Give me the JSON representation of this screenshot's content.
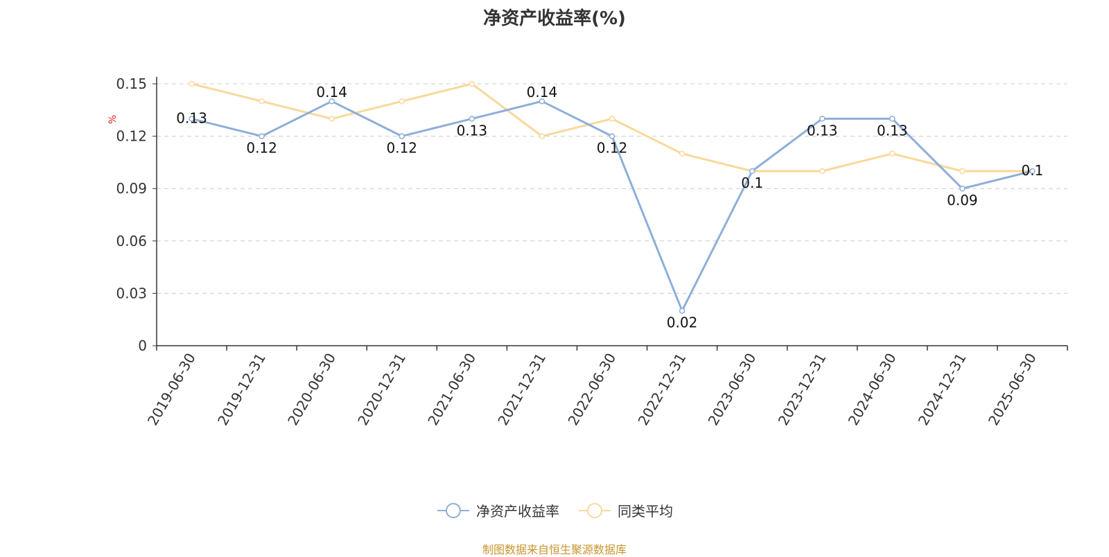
{
  "chart_data": {
    "type": "line",
    "title": "净资产收益率(%)",
    "ylabel": "%",
    "ylim": [
      0,
      0.15
    ],
    "yticks": [
      "0",
      "0.03",
      "0.06",
      "0.09",
      "0.12",
      "0.15"
    ],
    "grid": true,
    "categories": [
      "2019-06-30",
      "2019-12-31",
      "2020-06-30",
      "2020-12-31",
      "2021-06-30",
      "2021-12-31",
      "2022-06-30",
      "2022-12-31",
      "2023-06-30",
      "2023-12-31",
      "2024-06-30",
      "2024-12-31",
      "2025-06-30"
    ],
    "series": [
      {
        "name": "净资产收益率",
        "color": "#8eaed9",
        "values": [
          0.13,
          0.12,
          0.14,
          0.12,
          0.13,
          0.14,
          0.12,
          0.02,
          0.1,
          0.13,
          0.13,
          0.09,
          0.1
        ],
        "labels": [
          "0.13",
          "0.12",
          "0.14",
          "0.12",
          "0.13",
          "0.14",
          "0.12",
          "0.02",
          "0.1",
          "0.13",
          "0.13",
          "0.09",
          "0.1"
        ]
      },
      {
        "name": "同类平均",
        "color": "#f9d89a",
        "values": [
          0.15,
          0.14,
          0.13,
          0.14,
          0.15,
          0.12,
          0.13,
          0.11,
          0.1,
          0.1,
          0.11,
          0.1,
          0.1
        ]
      }
    ],
    "legend_position": "bottom-center"
  },
  "source_note": "制图数据来自恒生聚源数据库"
}
